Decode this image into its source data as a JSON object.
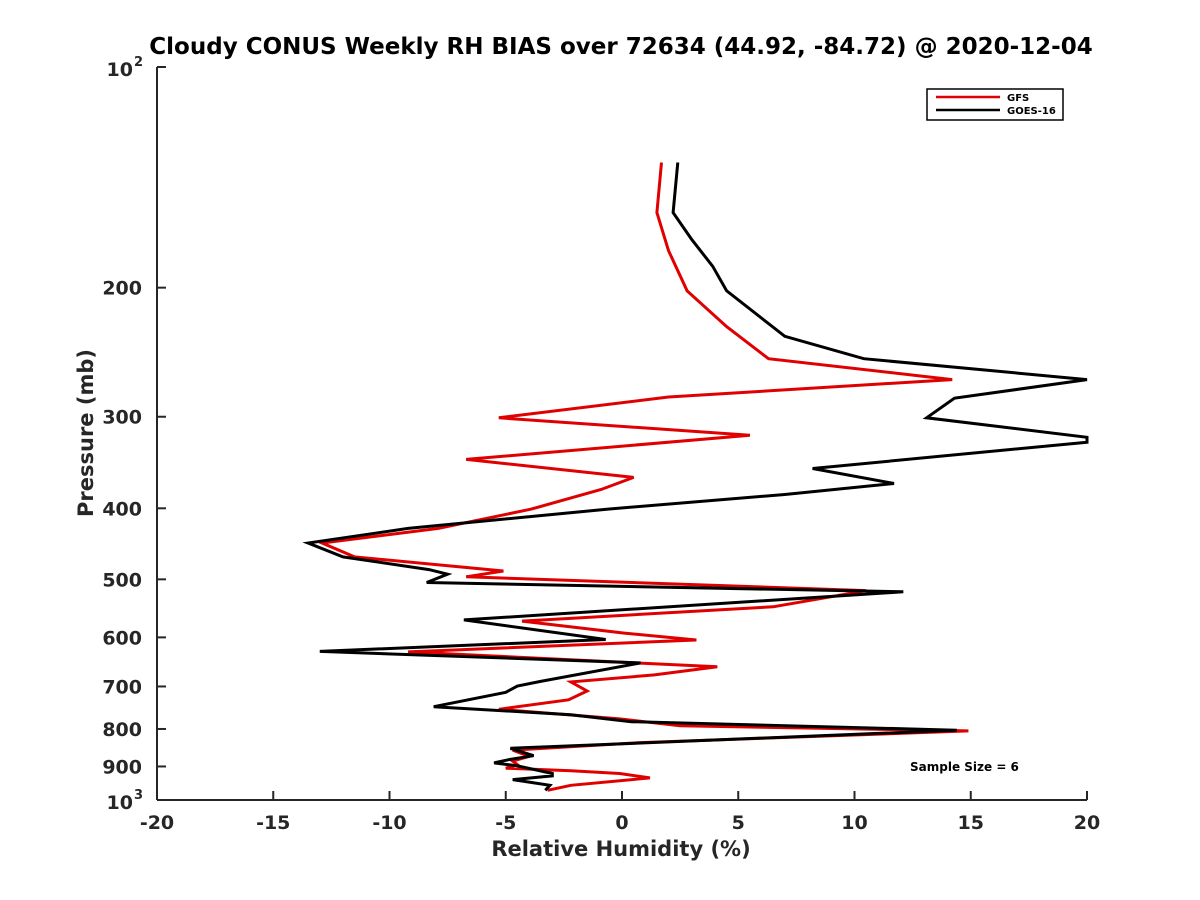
{
  "chart_data": {
    "type": "line",
    "title": "Cloudy CONUS Weekly RH BIAS over 72634 (44.92, -84.72) @ 2020-12-04",
    "xlabel": "Relative Humidity (%)",
    "ylabel": "Pressure (mb)",
    "xlim": [
      -20,
      20
    ],
    "ylim": [
      1000,
      100
    ],
    "yscale": "log",
    "y_reversed": true,
    "grid": false,
    "legend_position": "top-right",
    "xticks": [
      "-20",
      "-15",
      "-10",
      "-5",
      "0",
      "5",
      "10",
      "15",
      "20"
    ],
    "yticks": [
      {
        "value": 100,
        "base": "10",
        "exp": "2"
      },
      {
        "value": 200,
        "label": "200"
      },
      {
        "value": 300,
        "label": "300"
      },
      {
        "value": 400,
        "label": "400"
      },
      {
        "value": 500,
        "label": "500"
      },
      {
        "value": 600,
        "label": "600"
      },
      {
        "value": 700,
        "label": "700"
      },
      {
        "value": 800,
        "label": "800"
      },
      {
        "value": 900,
        "label": "900"
      },
      {
        "value": 1000,
        "base": "10",
        "exp": "3"
      }
    ],
    "series": [
      {
        "name": "GFS",
        "color": "#e00000",
        "points": [
          [
            1.7,
            135
          ],
          [
            1.5,
            158
          ],
          [
            2.0,
            178
          ],
          [
            2.8,
            202
          ],
          [
            4.5,
            226
          ],
          [
            6.3,
            250
          ],
          [
            14.2,
            267
          ],
          [
            2.0,
            282
          ],
          [
            -5.3,
            301
          ],
          [
            5.5,
            318
          ],
          [
            -6.7,
            343
          ],
          [
            0.5,
            363
          ],
          [
            -0.9,
            377
          ],
          [
            -3.9,
            401
          ],
          [
            -7.9,
            426
          ],
          [
            -12.9,
            446
          ],
          [
            -11.5,
            466
          ],
          [
            -5.1,
            487
          ],
          [
            -6.7,
            496
          ],
          [
            10.5,
            518
          ],
          [
            6.5,
            545
          ],
          [
            -4.3,
            570
          ],
          [
            0.1,
            592
          ],
          [
            3.2,
            605
          ],
          [
            -9.2,
            628
          ],
          [
            4.1,
            658
          ],
          [
            1.4,
            675
          ],
          [
            -2.2,
            690
          ],
          [
            -1.5,
            710
          ],
          [
            -2.3,
            730
          ],
          [
            -5.3,
            752
          ],
          [
            -0.1,
            775
          ],
          [
            2.5,
            792
          ],
          [
            14.9,
            805
          ],
          [
            0.8,
            835
          ],
          [
            -4.7,
            855
          ],
          [
            -4.0,
            872
          ],
          [
            -4.7,
            885
          ],
          [
            -4.5,
            895
          ],
          [
            -5.0,
            905
          ],
          [
            -2.2,
            912
          ],
          [
            -0.1,
            920
          ],
          [
            1.2,
            933
          ],
          [
            -2.2,
            955
          ],
          [
            -3.2,
            970
          ]
        ]
      },
      {
        "name": "GOES-16",
        "color": "#000000",
        "points": [
          [
            2.4,
            135
          ],
          [
            2.2,
            158
          ],
          [
            3.0,
            172
          ],
          [
            3.9,
            187
          ],
          [
            4.5,
            202
          ],
          [
            7.0,
            233
          ],
          [
            10.4,
            250
          ],
          [
            20.0,
            267
          ],
          [
            14.3,
            283
          ],
          [
            13.1,
            301
          ],
          [
            20.0,
            320
          ],
          [
            20.0,
            325
          ],
          [
            8.2,
            353
          ],
          [
            11.7,
            370
          ],
          [
            7.0,
            383
          ],
          [
            -0.6,
            401
          ],
          [
            -9.2,
            426
          ],
          [
            -13.5,
            446
          ],
          [
            -12.0,
            466
          ],
          [
            -8.3,
            485
          ],
          [
            -7.5,
            492
          ],
          [
            -8.4,
            505
          ],
          [
            12.1,
            520
          ],
          [
            -6.8,
            568
          ],
          [
            -0.7,
            604
          ],
          [
            -13.0,
            627
          ],
          [
            0.8,
            650
          ],
          [
            -3.5,
            689
          ],
          [
            -4.5,
            699
          ],
          [
            -5.0,
            713
          ],
          [
            -8.1,
            746
          ],
          [
            -2.2,
            765
          ],
          [
            0.4,
            782
          ],
          [
            14.4,
            803
          ],
          [
            -4.8,
            850
          ],
          [
            -3.8,
            870
          ],
          [
            -4.8,
            880
          ],
          [
            -5.5,
            890
          ],
          [
            -4.5,
            898
          ],
          [
            -3.0,
            920
          ],
          [
            -3.0,
            927
          ],
          [
            -4.7,
            938
          ],
          [
            -3.1,
            955
          ],
          [
            -3.3,
            970
          ]
        ]
      }
    ],
    "annotations": [
      "Sample Size = 6"
    ]
  }
}
